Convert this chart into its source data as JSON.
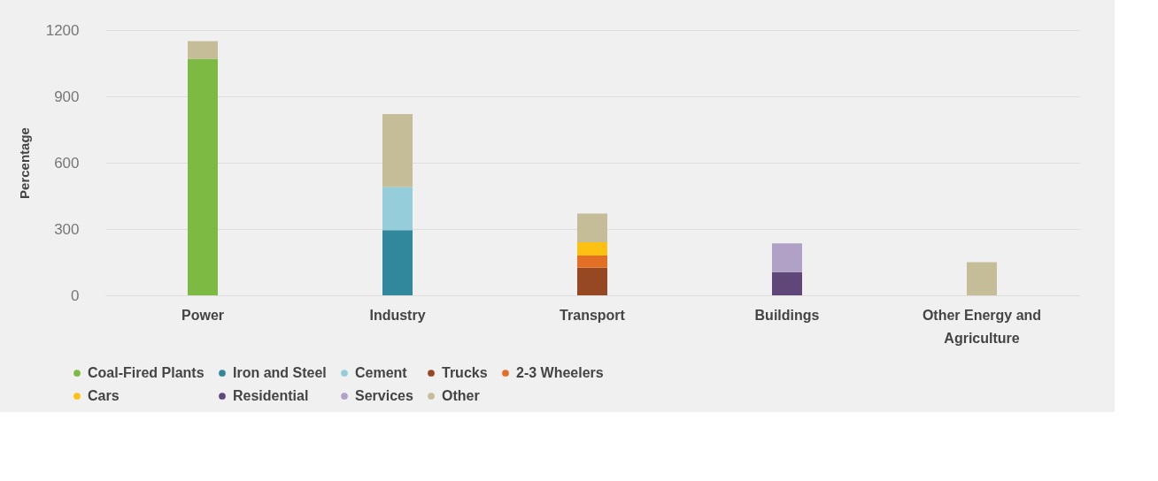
{
  "chart_data": {
    "type": "bar",
    "stacked": true,
    "ylabel": "Percentage",
    "categories": [
      "Power",
      "Industry",
      "Transport",
      "Buildings",
      "Other Energy and Agriculture"
    ],
    "ylim": [
      0,
      1200
    ],
    "yticks": [
      0,
      300,
      600,
      900,
      1200
    ],
    "grid": "y",
    "legend": "bottom left",
    "series": [
      {
        "name": "Coal-Fired Plants",
        "color": "#7dba44",
        "values": [
          1070,
          null,
          null,
          null,
          null
        ]
      },
      {
        "name": "Iron and Steel",
        "color": "#31879b",
        "values": [
          null,
          295,
          null,
          null,
          null
        ]
      },
      {
        "name": "Cement",
        "color": "#96cddb",
        "values": [
          null,
          195,
          null,
          null,
          null
        ]
      },
      {
        "name": "Trucks",
        "color": "#954822",
        "values": [
          null,
          null,
          125,
          null,
          null
        ]
      },
      {
        "name": "2-3 Wheelers",
        "color": "#e36f24",
        "values": [
          null,
          null,
          55,
          null,
          null
        ]
      },
      {
        "name": "Cars",
        "color": "#fdc113",
        "values": [
          null,
          null,
          60,
          null,
          null
        ]
      },
      {
        "name": "Residential",
        "color": "#5f4879",
        "values": [
          null,
          null,
          null,
          105,
          null
        ]
      },
      {
        "name": "Services",
        "color": "#b0a1c6",
        "values": [
          null,
          null,
          null,
          130,
          null
        ]
      },
      {
        "name": "Other",
        "color": "#c5bd98",
        "values": [
          80,
          330,
          130,
          null,
          150
        ]
      }
    ]
  }
}
